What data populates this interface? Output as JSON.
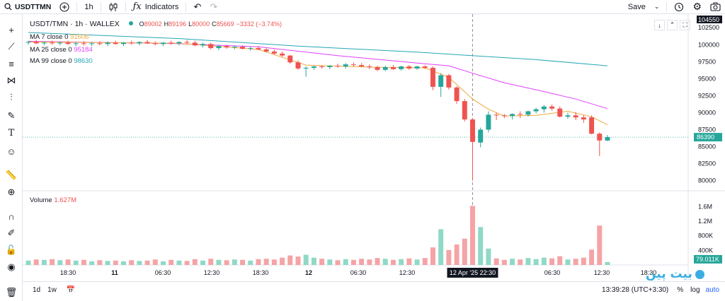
{
  "toolbar": {
    "symbol": "USDTTMN",
    "interval": "1h",
    "indicators_label": "Indicators",
    "save_label": "Save"
  },
  "legend": {
    "title": "USDT/TMN · 1h · WALLEX",
    "ohlc": {
      "o_label": "O",
      "o": "89002",
      "h_label": "H",
      "h": "89196",
      "l_label": "L",
      "l": "80000",
      "c_label": "C",
      "c": "85669",
      "change": "−3332 (−3.74%)"
    },
    "ma7": {
      "label": "MA 7 close 0",
      "value": "91606",
      "color": "#f0a83b"
    },
    "ma25": {
      "label": "MA 25 close 0",
      "value": "95184",
      "color": "#e040fb"
    },
    "ma99": {
      "label": "MA 99 close 0",
      "value": "98630",
      "color": "#26a6b6"
    },
    "volume_label": "Volume",
    "volume_value": "1.627M"
  },
  "price_axis": {
    "ticks": [
      "102500",
      "100000",
      "97500",
      "95000",
      "92500",
      "90000",
      "87500",
      "85000",
      "82500",
      "80000"
    ],
    "top_label": "104550",
    "last_price": "86390"
  },
  "volume_axis": {
    "ticks": [
      "1.6M",
      "1.2M",
      "800K",
      "400K"
    ],
    "last_volume": "79.011K"
  },
  "time_axis": {
    "ticks": [
      "18:30",
      "11",
      "06:30",
      "12:30",
      "18:30",
      "12",
      "06:30",
      "12:30",
      "18:30",
      "06:30",
      "12:30",
      "18:30"
    ],
    "crosshair_label": "12 Apr '25   22:30"
  },
  "bottom": {
    "ranges": [
      "1d",
      "1w"
    ],
    "clock": "13:39:28 (UTC+3:30)",
    "percent": "%",
    "log": "log",
    "auto": "auto"
  },
  "watermark": "بیت پین",
  "colors": {
    "up": "#26a69a",
    "down": "#ef5350",
    "up_vol": "#8fd9c6",
    "down_vol": "#f5a3a5"
  },
  "chart_data": {
    "type": "candlestick",
    "title": "USDT/TMN · 1h · WALLEX",
    "ylim": [
      78500,
      104500
    ],
    "volume_ylim": [
      0,
      1800000
    ],
    "candles": [
      {
        "t": "1",
        "o": 100300,
        "h": 100600,
        "l": 100000,
        "c": 100400,
        "v": 120000
      },
      {
        "t": "2",
        "o": 100400,
        "h": 100700,
        "l": 100100,
        "c": 100200,
        "v": 150000
      },
      {
        "t": "3",
        "o": 100200,
        "h": 100500,
        "l": 99900,
        "c": 100300,
        "v": 140000
      },
      {
        "t": "4",
        "o": 100300,
        "h": 100600,
        "l": 100000,
        "c": 100200,
        "v": 160000
      },
      {
        "t": "5",
        "o": 100200,
        "h": 100500,
        "l": 99900,
        "c": 100300,
        "v": 130000
      },
      {
        "t": "6",
        "o": 100300,
        "h": 100600,
        "l": 100000,
        "c": 100100,
        "v": 150000
      },
      {
        "t": "7",
        "o": 100100,
        "h": 100400,
        "l": 99800,
        "c": 100200,
        "v": 120000
      },
      {
        "t": "8",
        "o": 100200,
        "h": 100500,
        "l": 99900,
        "c": 100100,
        "v": 140000
      },
      {
        "t": "9",
        "o": 100100,
        "h": 100400,
        "l": 99800,
        "c": 100200,
        "v": 100000
      },
      {
        "t": "10",
        "o": 100200,
        "h": 100500,
        "l": 99900,
        "c": 100100,
        "v": 130000
      },
      {
        "t": "11",
        "o": 100100,
        "h": 100500,
        "l": 99800,
        "c": 100300,
        "v": 110000
      },
      {
        "t": "12",
        "o": 100300,
        "h": 100600,
        "l": 100000,
        "c": 100100,
        "v": 120000
      },
      {
        "t": "13",
        "o": 100100,
        "h": 100400,
        "l": 99800,
        "c": 100300,
        "v": 100000
      },
      {
        "t": "14",
        "o": 100300,
        "h": 100600,
        "l": 100000,
        "c": 100200,
        "v": 130000
      },
      {
        "t": "15",
        "o": 100200,
        "h": 100500,
        "l": 99900,
        "c": 100400,
        "v": 110000
      },
      {
        "t": "16",
        "o": 100400,
        "h": 100700,
        "l": 100100,
        "c": 100200,
        "v": 120000
      },
      {
        "t": "17",
        "o": 100200,
        "h": 100500,
        "l": 99900,
        "c": 100100,
        "v": 150000
      },
      {
        "t": "18",
        "o": 100100,
        "h": 100400,
        "l": 99800,
        "c": 100300,
        "v": 100000
      },
      {
        "t": "19",
        "o": 100300,
        "h": 100600,
        "l": 100000,
        "c": 100200,
        "v": 140000
      },
      {
        "t": "20",
        "o": 100200,
        "h": 100500,
        "l": 99900,
        "c": 100400,
        "v": 120000
      },
      {
        "t": "21",
        "o": 100400,
        "h": 100700,
        "l": 100100,
        "c": 100300,
        "v": 110000
      },
      {
        "t": "22",
        "o": 100300,
        "h": 100600,
        "l": 99800,
        "c": 99900,
        "v": 160000
      },
      {
        "t": "23",
        "o": 99900,
        "h": 100300,
        "l": 99600,
        "c": 100100,
        "v": 120000
      },
      {
        "t": "24",
        "o": 100100,
        "h": 100300,
        "l": 99300,
        "c": 99500,
        "v": 170000
      },
      {
        "t": "25",
        "o": 99500,
        "h": 100000,
        "l": 99200,
        "c": 99800,
        "v": 140000
      },
      {
        "t": "26",
        "o": 99800,
        "h": 100000,
        "l": 99400,
        "c": 99600,
        "v": 130000
      },
      {
        "t": "27",
        "o": 99600,
        "h": 99900,
        "l": 99300,
        "c": 99700,
        "v": 150000
      },
      {
        "t": "28",
        "o": 99700,
        "h": 99900,
        "l": 99300,
        "c": 99400,
        "v": 140000
      },
      {
        "t": "29",
        "o": 99400,
        "h": 99700,
        "l": 99100,
        "c": 99500,
        "v": 120000
      },
      {
        "t": "30",
        "o": 99500,
        "h": 99800,
        "l": 99200,
        "c": 99300,
        "v": 160000
      },
      {
        "t": "31",
        "o": 99300,
        "h": 99600,
        "l": 98900,
        "c": 99000,
        "v": 170000
      },
      {
        "t": "32",
        "o": 99000,
        "h": 99300,
        "l": 98500,
        "c": 98700,
        "v": 150000
      },
      {
        "t": "33",
        "o": 98700,
        "h": 99000,
        "l": 98200,
        "c": 98400,
        "v": 200000
      },
      {
        "t": "34",
        "o": 98400,
        "h": 98500,
        "l": 97200,
        "c": 97400,
        "v": 260000
      },
      {
        "t": "35",
        "o": 97400,
        "h": 97700,
        "l": 96300,
        "c": 96500,
        "v": 230000
      },
      {
        "t": "36",
        "o": 96500,
        "h": 96800,
        "l": 95300,
        "c": 96600,
        "v": 280000
      },
      {
        "t": "37",
        "o": 96600,
        "h": 96900,
        "l": 96300,
        "c": 96800,
        "v": 200000
      },
      {
        "t": "38",
        "o": 96800,
        "h": 97000,
        "l": 96500,
        "c": 96700,
        "v": 170000
      },
      {
        "t": "39",
        "o": 96700,
        "h": 97000,
        "l": 96400,
        "c": 96900,
        "v": 150000
      },
      {
        "t": "40",
        "o": 96900,
        "h": 97200,
        "l": 96600,
        "c": 96800,
        "v": 130000
      },
      {
        "t": "41",
        "o": 96800,
        "h": 97300,
        "l": 96500,
        "c": 97100,
        "v": 160000
      },
      {
        "t": "42",
        "o": 97100,
        "h": 97400,
        "l": 96800,
        "c": 97000,
        "v": 140000
      },
      {
        "t": "43",
        "o": 97000,
        "h": 97300,
        "l": 96700,
        "c": 96800,
        "v": 170000
      },
      {
        "t": "44",
        "o": 96800,
        "h": 97100,
        "l": 96400,
        "c": 96700,
        "v": 150000
      },
      {
        "t": "45",
        "o": 96700,
        "h": 96900,
        "l": 96100,
        "c": 96300,
        "v": 190000
      },
      {
        "t": "46",
        "o": 96300,
        "h": 96900,
        "l": 96100,
        "c": 96700,
        "v": 170000
      },
      {
        "t": "47",
        "o": 96700,
        "h": 97000,
        "l": 96300,
        "c": 96400,
        "v": 140000
      },
      {
        "t": "48",
        "o": 96400,
        "h": 96900,
        "l": 96200,
        "c": 96800,
        "v": 160000
      },
      {
        "t": "49",
        "o": 96800,
        "h": 97000,
        "l": 96300,
        "c": 96500,
        "v": 180000
      },
      {
        "t": "50",
        "o": 96500,
        "h": 96900,
        "l": 96300,
        "c": 96800,
        "v": 150000
      },
      {
        "t": "51",
        "o": 96800,
        "h": 97000,
        "l": 96400,
        "c": 96600,
        "v": 190000
      },
      {
        "t": "52",
        "o": 96600,
        "h": 96800,
        "l": 93300,
        "c": 93800,
        "v": 480000
      },
      {
        "t": "53",
        "o": 93800,
        "h": 95800,
        "l": 92300,
        "c": 95500,
        "v": 980000
      },
      {
        "t": "54",
        "o": 95500,
        "h": 95700,
        "l": 93400,
        "c": 93700,
        "v": 410000
      },
      {
        "t": "55",
        "o": 93700,
        "h": 93900,
        "l": 91300,
        "c": 91700,
        "v": 560000
      },
      {
        "t": "56",
        "o": 91700,
        "h": 92000,
        "l": 88700,
        "c": 89000,
        "v": 720000
      },
      {
        "t": "57",
        "o": 89000,
        "h": 89200,
        "l": 80000,
        "c": 85700,
        "v": 1620000
      },
      {
        "t": "58",
        "o": 85600,
        "h": 87800,
        "l": 84900,
        "c": 87500,
        "v": 1040000
      },
      {
        "t": "59",
        "o": 87500,
        "h": 90200,
        "l": 87100,
        "c": 89700,
        "v": 450000
      },
      {
        "t": "60",
        "o": 89700,
        "h": 90000,
        "l": 88900,
        "c": 89600,
        "v": 180000
      },
      {
        "t": "61",
        "o": 89600,
        "h": 89800,
        "l": 89200,
        "c": 89500,
        "v": 140000
      },
      {
        "t": "62",
        "o": 89500,
        "h": 89900,
        "l": 89000,
        "c": 89800,
        "v": 170000
      },
      {
        "t": "63",
        "o": 89800,
        "h": 90200,
        "l": 89200,
        "c": 89700,
        "v": 150000
      },
      {
        "t": "64",
        "o": 89700,
        "h": 90300,
        "l": 89400,
        "c": 90200,
        "v": 190000
      },
      {
        "t": "65",
        "o": 90200,
        "h": 90700,
        "l": 89900,
        "c": 90500,
        "v": 160000
      },
      {
        "t": "66",
        "o": 90500,
        "h": 91100,
        "l": 90000,
        "c": 90900,
        "v": 200000
      },
      {
        "t": "67",
        "o": 90900,
        "h": 91200,
        "l": 90300,
        "c": 90600,
        "v": 180000
      },
      {
        "t": "68",
        "o": 90600,
        "h": 90900,
        "l": 89300,
        "c": 89400,
        "v": 240000
      },
      {
        "t": "69",
        "o": 89400,
        "h": 90000,
        "l": 89100,
        "c": 89600,
        "v": 150000
      },
      {
        "t": "70",
        "o": 89600,
        "h": 90100,
        "l": 88900,
        "c": 89300,
        "v": 170000
      },
      {
        "t": "71",
        "o": 89300,
        "h": 89600,
        "l": 88500,
        "c": 89000,
        "v": 200000
      },
      {
        "t": "72",
        "o": 89300,
        "h": 89600,
        "l": 86800,
        "c": 86900,
        "v": 420000
      },
      {
        "t": "73",
        "o": 86900,
        "h": 87100,
        "l": 83600,
        "c": 85900,
        "v": 1080000
      },
      {
        "t": "74",
        "o": 85900,
        "h": 86700,
        "l": 85800,
        "c": 86400,
        "v": 79000
      }
    ],
    "ma7": [
      [
        1,
        100400
      ],
      [
        20,
        100200
      ],
      [
        30,
        99300
      ],
      [
        36,
        97000
      ],
      [
        44,
        96700
      ],
      [
        51,
        96600
      ],
      [
        54,
        95200
      ],
      [
        57,
        92000
      ],
      [
        59,
        90500
      ],
      [
        61,
        89500
      ],
      [
        65,
        89600
      ],
      [
        69,
        90200
      ],
      [
        72,
        89400
      ],
      [
        74,
        88200
      ]
    ],
    "ma25": [
      [
        1,
        100500
      ],
      [
        20,
        100150
      ],
      [
        30,
        99700
      ],
      [
        40,
        98400
      ],
      [
        50,
        97300
      ],
      [
        54,
        96900
      ],
      [
        57,
        95800
      ],
      [
        61,
        94400
      ],
      [
        66,
        93100
      ],
      [
        70,
        92000
      ],
      [
        74,
        90600
      ]
    ],
    "ma99": [
      [
        1,
        101800
      ],
      [
        20,
        100900
      ],
      [
        35,
        99800
      ],
      [
        50,
        98900
      ],
      [
        65,
        97800
      ],
      [
        74,
        96900
      ]
    ]
  }
}
